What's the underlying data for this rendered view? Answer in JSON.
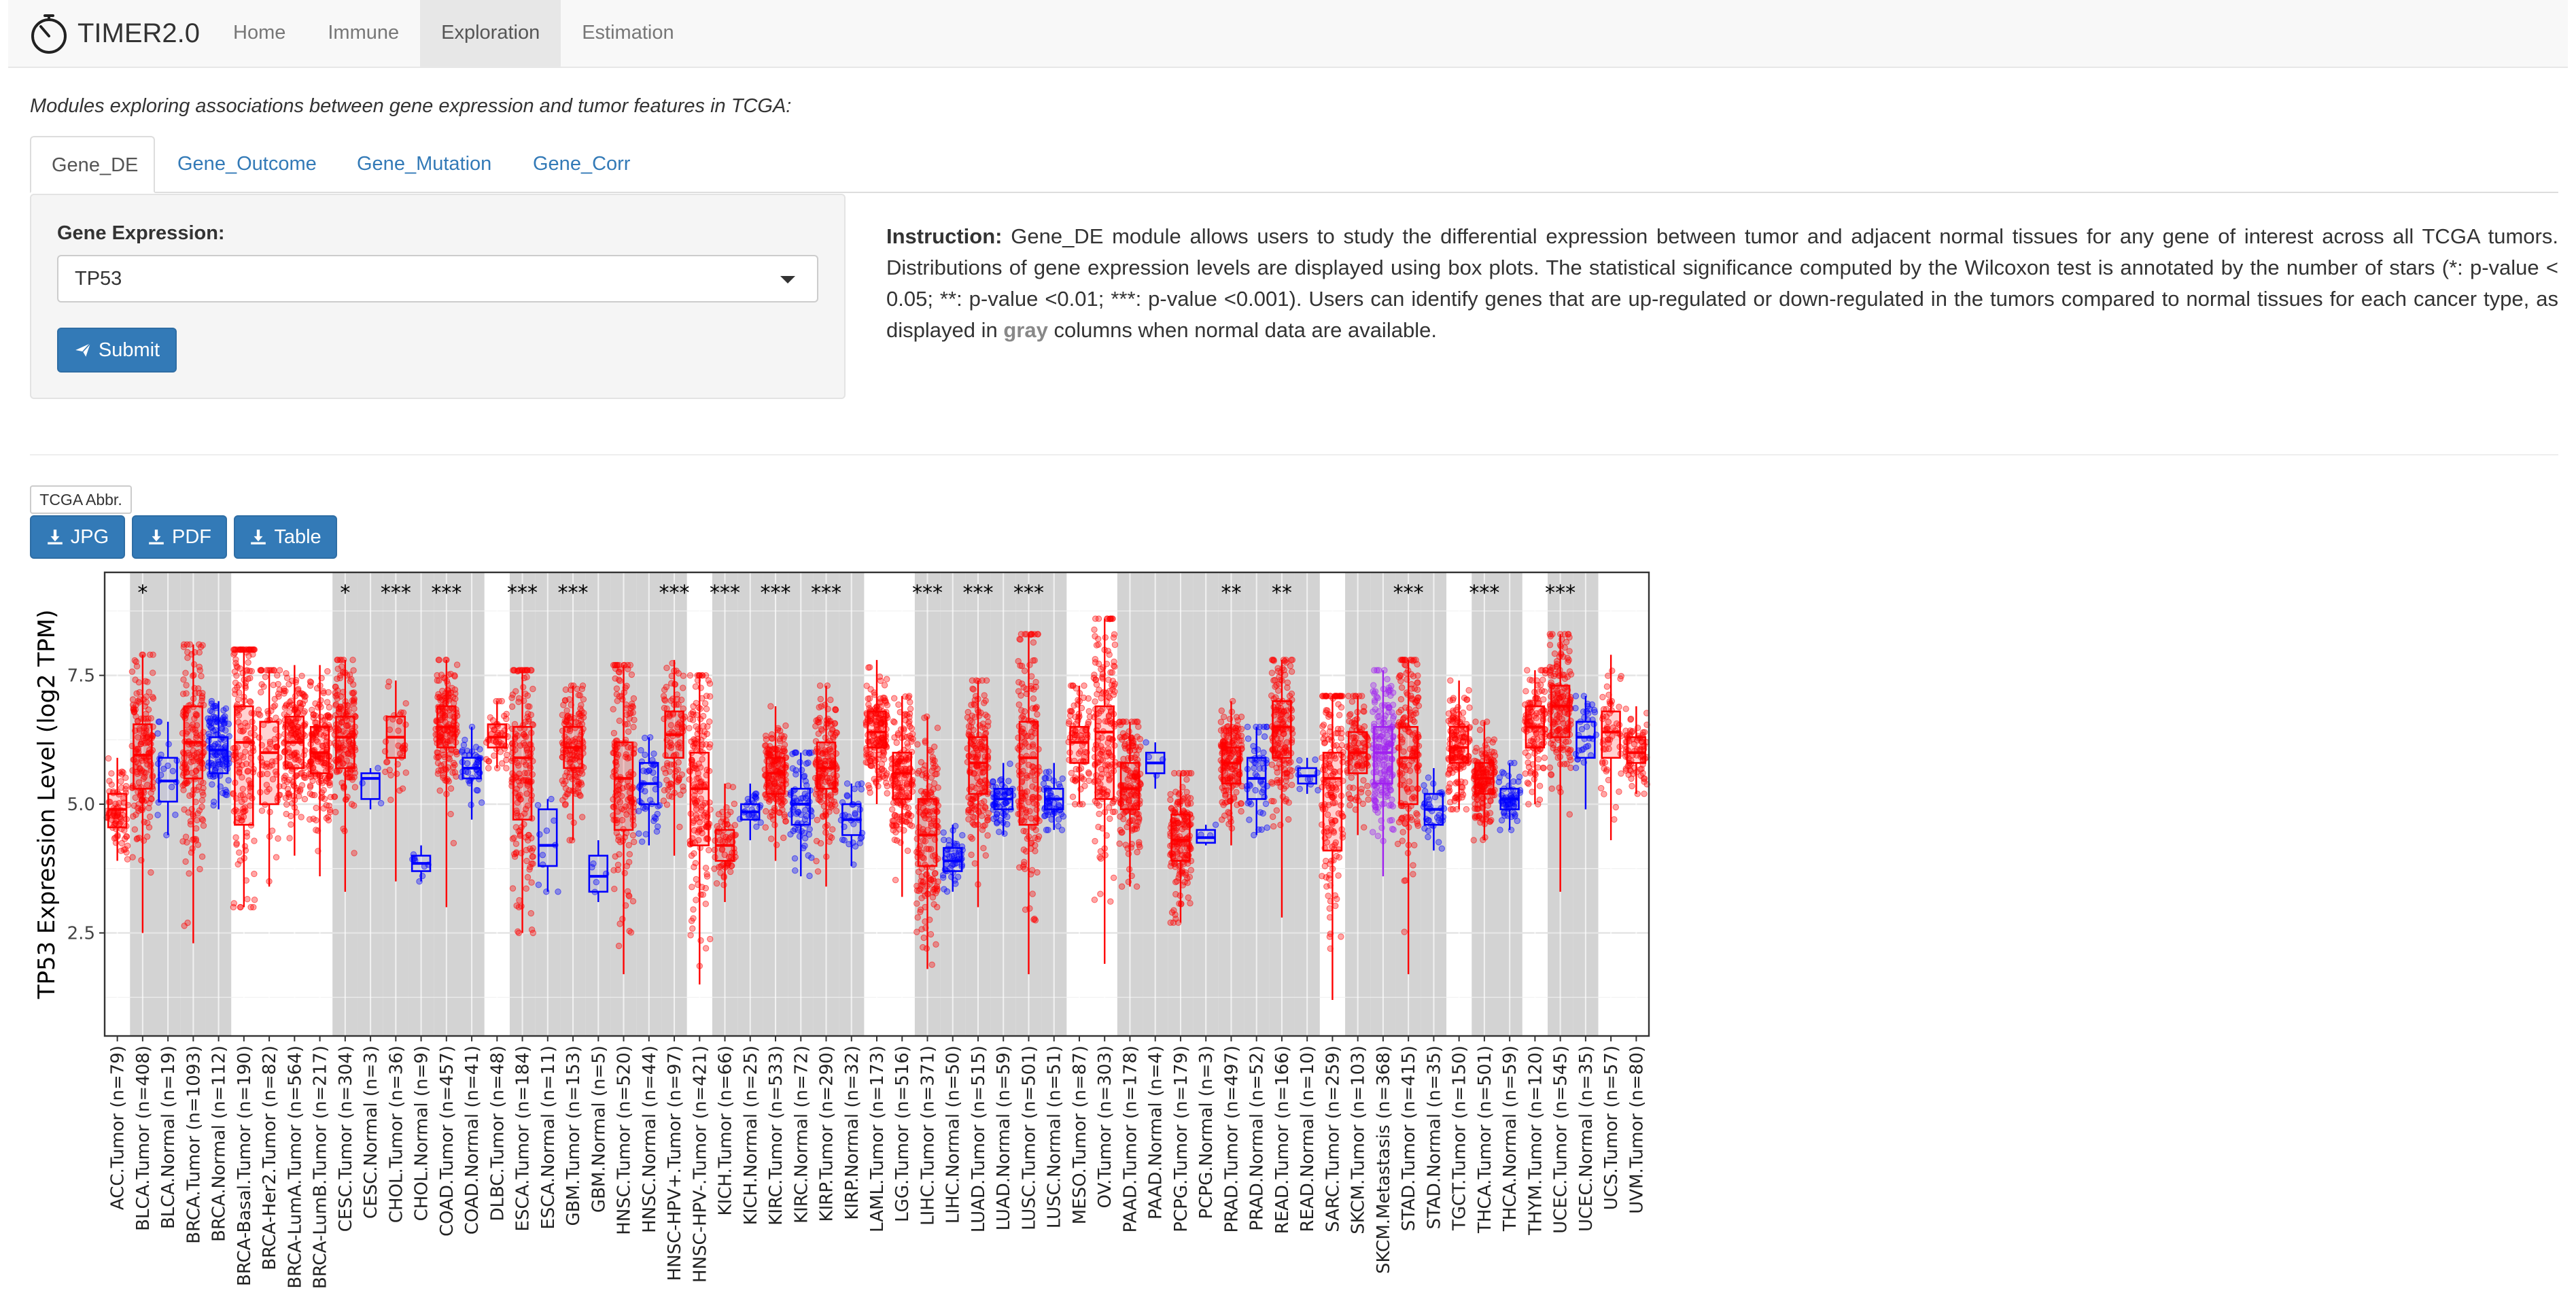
{
  "app": {
    "name": "TIMER2.0"
  },
  "nav": {
    "items": [
      "Home",
      "Immune",
      "Exploration",
      "Estimation"
    ],
    "active": "Exploration"
  },
  "subtitle": "Modules exploring associations between gene expression and tumor features in TCGA:",
  "tabs": {
    "items": [
      "Gene_DE",
      "Gene_Outcome",
      "Gene_Mutation",
      "Gene_Corr"
    ],
    "active": "Gene_DE"
  },
  "form": {
    "label": "Gene Expression:",
    "selected_gene": "TP53",
    "submit_label": "Submit"
  },
  "instruction": {
    "heading": "Instruction:",
    "text_before": "Gene_DE module allows users to study the differential expression between tumor and adjacent normal tissues for any gene of interest across all TCGA tumors. Distributions of gene expression levels are displayed using box plots. The statistical significance computed by the Wilcoxon test is annotated by the number of stars (*: p-value < 0.05; **: p-value <0.01; ***: p-value <0.001). Users can identify genes that are up-regulated or down-regulated in the tumors compared to normal tissues for each cancer type, as displayed in",
    "highlight": "gray",
    "text_after": "columns when normal data are available."
  },
  "buttons": {
    "abbr": "TCGA Abbr.",
    "jpg": "JPG",
    "pdf": "PDF",
    "table": "Table"
  },
  "colors": {
    "tumor": "#ff0000",
    "normal": "#0000ff",
    "metastasis": "#a020f0",
    "shade": "#d3d3d3",
    "primary": "#337ab7"
  },
  "chart_data": {
    "type": "box",
    "ylabel": "TP53 Expression Level (log2 TPM)",
    "yticks": [
      2.5,
      5.0,
      7.5
    ],
    "ylim": [
      0.5,
      9.5
    ],
    "shaded_cancers": [
      "BLCA",
      "BRCA",
      "CESC",
      "CHOL",
      "COAD",
      "ESCA",
      "GBM",
      "HNSC",
      "HNSC-HPV+",
      "KICH",
      "KIRC",
      "KIRP",
      "LIHC",
      "LUAD",
      "LUSC",
      "PAAD",
      "PCPG",
      "PRAD",
      "READ",
      "SKCM",
      "STAD",
      "THCA",
      "UCEC"
    ],
    "categories": [
      {
        "label": "ACC.Tumor (n=79)",
        "group": "ACC",
        "kind": "tumor",
        "q1": 4.55,
        "median": 4.9,
        "q3": 5.2,
        "min": 3.9,
        "max": 5.9,
        "sig": ""
      },
      {
        "label": "BLCA.Tumor (n=408)",
        "group": "BLCA",
        "kind": "tumor",
        "q1": 5.3,
        "median": 5.95,
        "q3": 6.55,
        "min": 2.5,
        "max": 7.9,
        "sig": "*"
      },
      {
        "label": "BLCA.Normal (n=19)",
        "group": "BLCA",
        "kind": "normal",
        "q1": 5.05,
        "median": 5.45,
        "q3": 5.9,
        "min": 4.4,
        "max": 6.6,
        "sig": ""
      },
      {
        "label": "BRCA.Tumor (n=1093)",
        "group": "BRCA",
        "kind": "tumor",
        "q1": 5.5,
        "median": 6.2,
        "q3": 6.9,
        "min": 2.3,
        "max": 8.1,
        "sig": ""
      },
      {
        "label": "BRCA.Normal (n=112)",
        "group": "BRCA",
        "kind": "normal",
        "q1": 5.6,
        "median": 6.05,
        "q3": 6.3,
        "min": 4.9,
        "max": 7.0,
        "sig": ""
      },
      {
        "label": "BRCA-Basal.Tumor (n=190)",
        "group": "BRCA-Basal",
        "kind": "tumor",
        "q1": 4.6,
        "median": 6.2,
        "q3": 6.9,
        "min": 3.0,
        "max": 8.0,
        "sig": ""
      },
      {
        "label": "BRCA-Her2.Tumor (n=82)",
        "group": "BRCA-Her2",
        "kind": "tumor",
        "q1": 5.0,
        "median": 6.0,
        "q3": 6.6,
        "min": 3.4,
        "max": 7.6,
        "sig": ""
      },
      {
        "label": "BRCA-LumA.Tumor (n=564)",
        "group": "BRCA-LumA",
        "kind": "tumor",
        "q1": 5.7,
        "median": 6.2,
        "q3": 6.7,
        "min": 4.0,
        "max": 7.7,
        "sig": ""
      },
      {
        "label": "BRCA-LumB.Tumor (n=217)",
        "group": "BRCA-LumB",
        "kind": "tumor",
        "q1": 5.6,
        "median": 6.0,
        "q3": 6.5,
        "min": 3.6,
        "max": 7.7,
        "sig": ""
      },
      {
        "label": "CESC.Tumor (n=304)",
        "group": "CESC",
        "kind": "tumor",
        "q1": 5.7,
        "median": 6.3,
        "q3": 6.7,
        "min": 3.3,
        "max": 7.8,
        "sig": "*"
      },
      {
        "label": "CESC.Normal (n=3)",
        "group": "CESC",
        "kind": "normal",
        "q1": 5.1,
        "median": 5.5,
        "q3": 5.6,
        "min": 4.9,
        "max": 5.7,
        "sig": ""
      },
      {
        "label": "CHOL.Tumor (n=36)",
        "group": "CHOL",
        "kind": "tumor",
        "q1": 5.9,
        "median": 6.3,
        "q3": 6.7,
        "min": 3.5,
        "max": 7.4,
        "sig": "***"
      },
      {
        "label": "CHOL.Normal (n=9)",
        "group": "CHOL",
        "kind": "normal",
        "q1": 3.7,
        "median": 3.85,
        "q3": 4.0,
        "min": 3.5,
        "max": 4.2,
        "sig": ""
      },
      {
        "label": "COAD.Tumor (n=457)",
        "group": "COAD",
        "kind": "tumor",
        "q1": 6.1,
        "median": 6.5,
        "q3": 6.9,
        "min": 3.0,
        "max": 7.8,
        "sig": "***"
      },
      {
        "label": "COAD.Normal (n=41)",
        "group": "COAD",
        "kind": "normal",
        "q1": 5.5,
        "median": 5.7,
        "q3": 5.9,
        "min": 4.7,
        "max": 6.5,
        "sig": ""
      },
      {
        "label": "DLBC.Tumor (n=48)",
        "group": "DLBC",
        "kind": "tumor",
        "q1": 6.1,
        "median": 6.3,
        "q3": 6.55,
        "min": 5.7,
        "max": 7.0,
        "sig": ""
      },
      {
        "label": "ESCA.Tumor (n=184)",
        "group": "ESCA",
        "kind": "tumor",
        "q1": 4.7,
        "median": 5.9,
        "q3": 6.5,
        "min": 2.5,
        "max": 7.6,
        "sig": "***"
      },
      {
        "label": "ESCA.Normal (n=11)",
        "group": "ESCA",
        "kind": "normal",
        "q1": 3.8,
        "median": 4.2,
        "q3": 4.9,
        "min": 3.3,
        "max": 5.1,
        "sig": ""
      },
      {
        "label": "GBM.Tumor (n=153)",
        "group": "GBM",
        "kind": "tumor",
        "q1": 5.7,
        "median": 6.1,
        "q3": 6.5,
        "min": 4.3,
        "max": 7.3,
        "sig": "***"
      },
      {
        "label": "GBM.Normal (n=5)",
        "group": "GBM",
        "kind": "normal",
        "q1": 3.3,
        "median": 3.6,
        "q3": 4.0,
        "min": 3.1,
        "max": 4.3,
        "sig": ""
      },
      {
        "label": "HNSC.Tumor (n=520)",
        "group": "HNSC",
        "kind": "tumor",
        "q1": 4.5,
        "median": 5.5,
        "q3": 6.2,
        "min": 1.7,
        "max": 7.7,
        "sig": ""
      },
      {
        "label": "HNSC.Normal (n=44)",
        "group": "HNSC",
        "kind": "normal",
        "q1": 5.0,
        "median": 5.4,
        "q3": 5.8,
        "min": 4.2,
        "max": 6.3,
        "sig": ""
      },
      {
        "label": "HNSC-HPV+.Tumor (n=97)",
        "group": "HNSC-HPV+",
        "kind": "tumor",
        "q1": 5.9,
        "median": 6.35,
        "q3": 6.8,
        "min": 4.0,
        "max": 7.8,
        "sig": "***"
      },
      {
        "label": "HNSC-HPV-.Tumor (n=421)",
        "group": "HNSC-HPV-",
        "kind": "tumor",
        "q1": 4.2,
        "median": 5.3,
        "q3": 6.0,
        "min": 1.5,
        "max": 7.5,
        "sig": ""
      },
      {
        "label": "KICH.Tumor (n=66)",
        "group": "KICH",
        "kind": "tumor",
        "q1": 3.9,
        "median": 4.2,
        "q3": 4.5,
        "min": 3.1,
        "max": 5.4,
        "sig": "***"
      },
      {
        "label": "KICH.Normal (n=25)",
        "group": "KICH",
        "kind": "normal",
        "q1": 4.7,
        "median": 4.85,
        "q3": 5.0,
        "min": 4.3,
        "max": 5.4,
        "sig": ""
      },
      {
        "label": "KIRC.Tumor (n=533)",
        "group": "KIRC",
        "kind": "tumor",
        "q1": 5.2,
        "median": 5.6,
        "q3": 5.9,
        "min": 3.9,
        "max": 6.9,
        "sig": "***"
      },
      {
        "label": "KIRC.Normal (n=72)",
        "group": "KIRC",
        "kind": "normal",
        "q1": 4.6,
        "median": 5.0,
        "q3": 5.3,
        "min": 3.6,
        "max": 6.0,
        "sig": ""
      },
      {
        "label": "KIRP.Tumor (n=290)",
        "group": "KIRP",
        "kind": "tumor",
        "q1": 5.3,
        "median": 5.7,
        "q3": 6.2,
        "min": 3.4,
        "max": 7.3,
        "sig": "***"
      },
      {
        "label": "KIRP.Normal (n=32)",
        "group": "KIRP",
        "kind": "normal",
        "q1": 4.4,
        "median": 4.7,
        "q3": 5.0,
        "min": 3.8,
        "max": 5.4,
        "sig": ""
      },
      {
        "label": "LAML.Tumor (n=173)",
        "group": "LAML",
        "kind": "tumor",
        "q1": 6.1,
        "median": 6.4,
        "q3": 6.8,
        "min": 5.0,
        "max": 7.8,
        "sig": ""
      },
      {
        "label": "LGG.Tumor (n=516)",
        "group": "LGG",
        "kind": "tumor",
        "q1": 5.1,
        "median": 5.6,
        "q3": 6.0,
        "min": 3.2,
        "max": 7.1,
        "sig": ""
      },
      {
        "label": "LIHC.Tumor (n=371)",
        "group": "LIHC",
        "kind": "tumor",
        "q1": 3.8,
        "median": 4.4,
        "q3": 5.1,
        "min": 1.8,
        "max": 6.7,
        "sig": "***"
      },
      {
        "label": "LIHC.Normal (n=50)",
        "group": "LIHC",
        "kind": "normal",
        "q1": 3.7,
        "median": 3.9,
        "q3": 4.15,
        "min": 3.3,
        "max": 4.6,
        "sig": ""
      },
      {
        "label": "LUAD.Tumor (n=515)",
        "group": "LUAD",
        "kind": "tumor",
        "q1": 5.2,
        "median": 5.8,
        "q3": 6.3,
        "min": 3.0,
        "max": 7.4,
        "sig": "***"
      },
      {
        "label": "LUAD.Normal (n=59)",
        "group": "LUAD",
        "kind": "normal",
        "q1": 4.9,
        "median": 5.1,
        "q3": 5.3,
        "min": 4.4,
        "max": 5.8,
        "sig": ""
      },
      {
        "label": "LUSC.Tumor (n=501)",
        "group": "LUSC",
        "kind": "tumor",
        "q1": 4.6,
        "median": 5.9,
        "q3": 6.6,
        "min": 1.7,
        "max": 8.3,
        "sig": "***"
      },
      {
        "label": "LUSC.Normal (n=51)",
        "group": "LUSC",
        "kind": "normal",
        "q1": 4.9,
        "median": 5.1,
        "q3": 5.3,
        "min": 4.5,
        "max": 5.8,
        "sig": ""
      },
      {
        "label": "MESO.Tumor (n=87)",
        "group": "MESO",
        "kind": "tumor",
        "q1": 5.8,
        "median": 6.2,
        "q3": 6.5,
        "min": 5.0,
        "max": 7.3,
        "sig": ""
      },
      {
        "label": "OV.Tumor (n=303)",
        "group": "OV",
        "kind": "tumor",
        "q1": 5.1,
        "median": 6.4,
        "q3": 6.9,
        "min": 1.9,
        "max": 8.6,
        "sig": ""
      },
      {
        "label": "PAAD.Tumor (n=178)",
        "group": "PAAD",
        "kind": "tumor",
        "q1": 4.9,
        "median": 5.3,
        "q3": 5.8,
        "min": 3.4,
        "max": 6.6,
        "sig": ""
      },
      {
        "label": "PAAD.Normal (n=4)",
        "group": "PAAD",
        "kind": "normal",
        "q1": 5.6,
        "median": 5.8,
        "q3": 6.0,
        "min": 5.3,
        "max": 6.2,
        "sig": ""
      },
      {
        "label": "PCPG.Tumor (n=179)",
        "group": "PCPG",
        "kind": "tumor",
        "q1": 3.9,
        "median": 4.3,
        "q3": 4.8,
        "min": 2.7,
        "max": 5.6,
        "sig": ""
      },
      {
        "label": "PCPG.Normal (n=3)",
        "group": "PCPG",
        "kind": "normal",
        "q1": 4.25,
        "median": 4.35,
        "q3": 4.5,
        "min": 4.2,
        "max": 4.6,
        "sig": ""
      },
      {
        "label": "PRAD.Tumor (n=497)",
        "group": "PRAD",
        "kind": "tumor",
        "q1": 5.4,
        "median": 5.8,
        "q3": 6.1,
        "min": 4.2,
        "max": 7.0,
        "sig": "**"
      },
      {
        "label": "PRAD.Normal (n=52)",
        "group": "PRAD",
        "kind": "normal",
        "q1": 5.1,
        "median": 5.5,
        "q3": 5.9,
        "min": 4.4,
        "max": 6.5,
        "sig": ""
      },
      {
        "label": "READ.Tumor (n=166)",
        "group": "READ",
        "kind": "tumor",
        "q1": 5.9,
        "median": 6.5,
        "q3": 7.0,
        "min": 2.8,
        "max": 7.8,
        "sig": "**"
      },
      {
        "label": "READ.Normal (n=10)",
        "group": "READ",
        "kind": "normal",
        "q1": 5.4,
        "median": 5.55,
        "q3": 5.7,
        "min": 5.2,
        "max": 5.9,
        "sig": ""
      },
      {
        "label": "SARC.Tumor (n=259)",
        "group": "SARC",
        "kind": "tumor",
        "q1": 4.1,
        "median": 5.5,
        "q3": 6.0,
        "min": 1.2,
        "max": 7.1,
        "sig": ""
      },
      {
        "label": "SKCM.Tumor (n=103)",
        "group": "SKCM",
        "kind": "tumor",
        "q1": 5.6,
        "median": 6.0,
        "q3": 6.4,
        "min": 4.4,
        "max": 7.1,
        "sig": ""
      },
      {
        "label": "SKCM.Metastasis (n=368)",
        "group": "SKCM",
        "kind": "metastasis",
        "q1": 5.4,
        "median": 6.0,
        "q3": 6.5,
        "min": 3.6,
        "max": 7.6,
        "sig": ""
      },
      {
        "label": "STAD.Tumor (n=415)",
        "group": "STAD",
        "kind": "tumor",
        "q1": 5.0,
        "median": 5.9,
        "q3": 6.5,
        "min": 1.7,
        "max": 7.8,
        "sig": "***"
      },
      {
        "label": "STAD.Normal (n=35)",
        "group": "STAD",
        "kind": "normal",
        "q1": 4.6,
        "median": 4.9,
        "q3": 5.2,
        "min": 4.1,
        "max": 5.7,
        "sig": ""
      },
      {
        "label": "TGCT.Tumor (n=150)",
        "group": "TGCT",
        "kind": "tumor",
        "q1": 5.8,
        "median": 6.1,
        "q3": 6.5,
        "min": 4.9,
        "max": 7.4,
        "sig": ""
      },
      {
        "label": "THCA.Tumor (n=501)",
        "group": "THCA",
        "kind": "tumor",
        "q1": 5.2,
        "median": 5.5,
        "q3": 5.8,
        "min": 4.3,
        "max": 6.6,
        "sig": "***"
      },
      {
        "label": "THCA.Normal (n=59)",
        "group": "THCA",
        "kind": "normal",
        "q1": 4.9,
        "median": 5.1,
        "q3": 5.3,
        "min": 4.5,
        "max": 5.8,
        "sig": ""
      },
      {
        "label": "THYM.Tumor (n=120)",
        "group": "THYM",
        "kind": "tumor",
        "q1": 6.1,
        "median": 6.5,
        "q3": 6.9,
        "min": 5.0,
        "max": 7.6,
        "sig": ""
      },
      {
        "label": "UCEC.Tumor (n=545)",
        "group": "UCEC",
        "kind": "tumor",
        "q1": 6.3,
        "median": 6.9,
        "q3": 7.3,
        "min": 3.3,
        "max": 8.3,
        "sig": "***"
      },
      {
        "label": "UCEC.Normal (n=35)",
        "group": "UCEC",
        "kind": "normal",
        "q1": 5.9,
        "median": 6.3,
        "q3": 6.6,
        "min": 4.9,
        "max": 7.1,
        "sig": ""
      },
      {
        "label": "UCS.Tumor (n=57)",
        "group": "UCS",
        "kind": "tumor",
        "q1": 5.9,
        "median": 6.4,
        "q3": 6.8,
        "min": 4.3,
        "max": 7.9,
        "sig": ""
      },
      {
        "label": "UVM.Tumor (n=80)",
        "group": "UVM",
        "kind": "tumor",
        "q1": 5.8,
        "median": 6.0,
        "q3": 6.3,
        "min": 5.2,
        "max": 6.9,
        "sig": ""
      }
    ]
  }
}
